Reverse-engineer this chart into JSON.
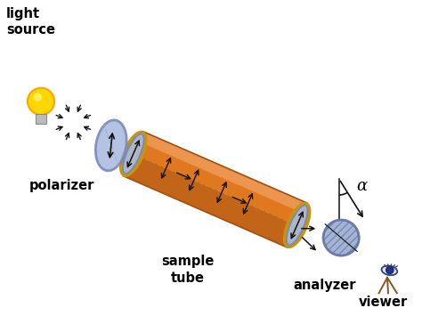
{
  "bg_color": "#ffffff",
  "labels": {
    "light_source": "light\nsource",
    "polarizer": "polarizer",
    "sample_tube": "sample\ntube",
    "analyzer": "analyzer",
    "viewer": "viewer",
    "alpha": "α"
  },
  "colors": {
    "bulb_yellow": "#FFD700",
    "bulb_orange": "#FFA500",
    "bulb_base": "#BBBBBB",
    "polarizer_fill": "#AABBDD",
    "polarizer_edge": "#7788BB",
    "tube_orange": "#E07820",
    "tube_dark": "#A05010",
    "tube_highlight": "#F0A060",
    "tube_gold": "#C8960A",
    "analyzer_fill": "#99AACC",
    "analyzer_edge": "#6677AA",
    "arrow_color": "#111111",
    "label_color": "#000000",
    "line_color": "#222222"
  },
  "figsize": [
    4.74,
    3.55
  ],
  "dpi": 100
}
